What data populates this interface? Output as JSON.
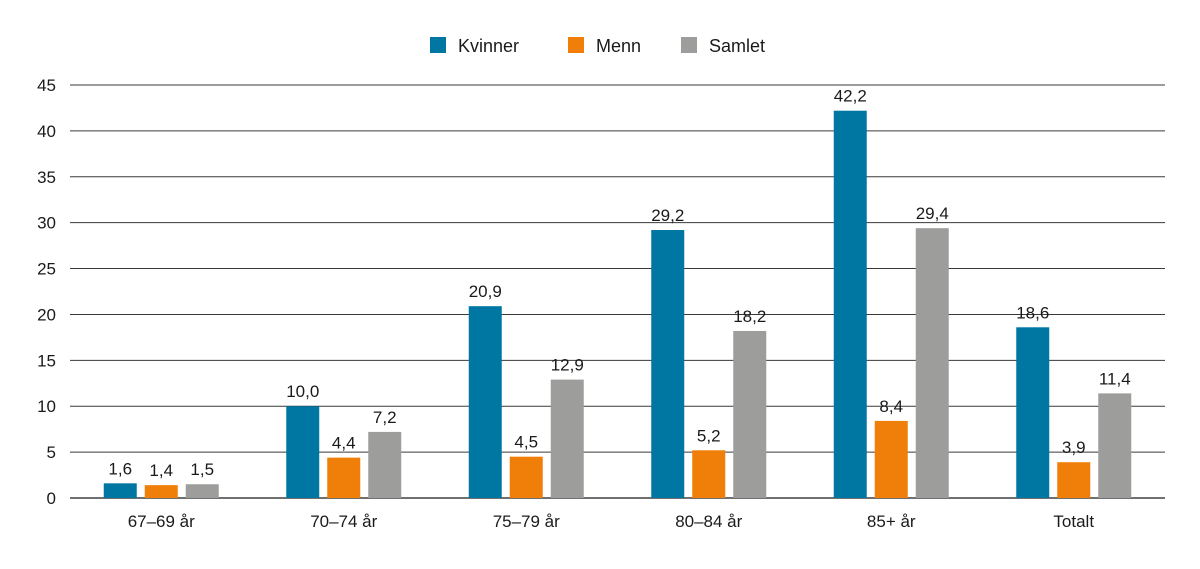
{
  "chart_data": {
    "type": "bar",
    "categories": [
      "67–69 år",
      "70–74 år",
      "75–79 år",
      "80–84 år",
      "85+ år",
      "Totalt"
    ],
    "series": [
      {
        "name": "Kvinner",
        "color": "#0077A3",
        "values": [
          1.6,
          10.0,
          20.9,
          29.2,
          42.2,
          18.6
        ],
        "labels": [
          "1,6",
          "10,0",
          "20,9",
          "29,2",
          "42,2",
          "18,6"
        ]
      },
      {
        "name": "Menn",
        "color": "#F07F09",
        "values": [
          1.4,
          4.4,
          4.5,
          5.2,
          8.4,
          3.9
        ],
        "labels": [
          "1,4",
          "4,4",
          "4,5",
          "5,2",
          "8,4",
          "3,9"
        ]
      },
      {
        "name": "Samlet",
        "color": "#9D9D9C",
        "values": [
          1.5,
          7.2,
          12.9,
          18.2,
          29.4,
          11.4
        ],
        "labels": [
          "1,5",
          "7,2",
          "12,9",
          "18,2",
          "29,4",
          "11,4"
        ]
      }
    ],
    "yticks": [
      0,
      5,
      10,
      15,
      20,
      25,
      30,
      35,
      40,
      45
    ],
    "ylim": [
      0,
      45
    ],
    "grid": true,
    "legend_position": "top-center"
  }
}
